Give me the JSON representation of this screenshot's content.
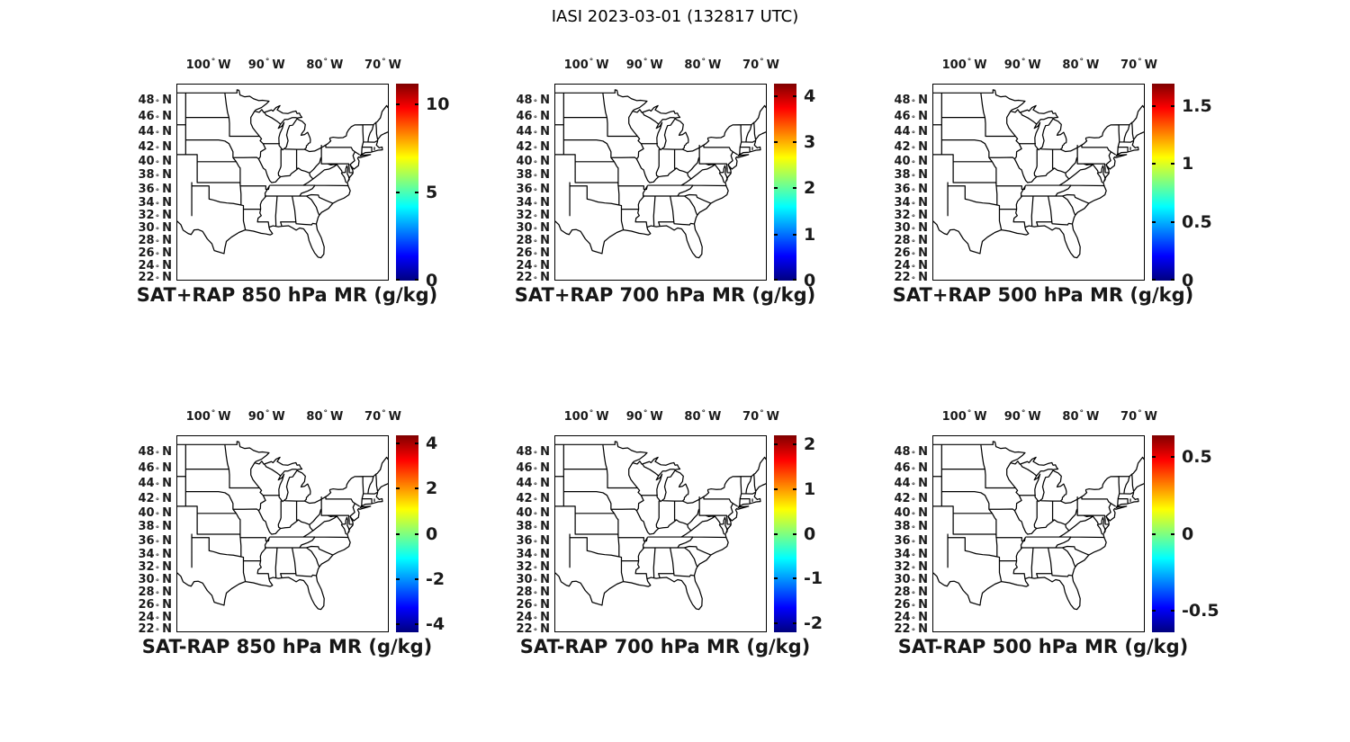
{
  "figure_title": "IASI 2023-03-01 (132817 UTC)",
  "axes": {
    "lon_ticks": [
      {
        "value": "100",
        "hemi": "W",
        "lon": -100
      },
      {
        "value": "90",
        "hemi": "W",
        "lon": -90
      },
      {
        "value": "80",
        "hemi": "W",
        "lon": -80
      },
      {
        "value": "70",
        "hemi": "W",
        "lon": -70
      }
    ],
    "lat_ticks": [
      {
        "value": "48",
        "hemi": "N",
        "lat": 48
      },
      {
        "value": "46",
        "hemi": "N",
        "lat": 46
      },
      {
        "value": "44",
        "hemi": "N",
        "lat": 44
      },
      {
        "value": "42",
        "hemi": "N",
        "lat": 42
      },
      {
        "value": "40",
        "hemi": "N",
        "lat": 40
      },
      {
        "value": "38",
        "hemi": "N",
        "lat": 38
      },
      {
        "value": "36",
        "hemi": "N",
        "lat": 36
      },
      {
        "value": "34",
        "hemi": "N",
        "lat": 34
      },
      {
        "value": "32",
        "hemi": "N",
        "lat": 32
      },
      {
        "value": "30",
        "hemi": "N",
        "lat": 30
      },
      {
        "value": "28",
        "hemi": "N",
        "lat": 28
      },
      {
        "value": "26",
        "hemi": "N",
        "lat": 26
      },
      {
        "value": "24",
        "hemi": "N",
        "lat": 24
      },
      {
        "value": "22",
        "hemi": "N",
        "lat": 22
      }
    ]
  },
  "colormap": {
    "name": "jet",
    "stops": [
      "#00007f",
      "#0000ff",
      "#00ffff",
      "#ffff00",
      "#ff0000",
      "#7f0000"
    ],
    "positions": [
      0,
      12.5,
      37.5,
      62.5,
      87.5,
      100
    ]
  },
  "panels": [
    {
      "title": "SAT+RAP 850 hPa MR (g/kg)",
      "colorbar": {
        "min": 0,
        "max": 11.15,
        "ticks": [
          {
            "label": "0",
            "value": 0
          },
          {
            "label": "5",
            "value": 5
          },
          {
            "label": "10",
            "value": 10
          }
        ]
      }
    },
    {
      "title": "SAT+RAP 700 hPa MR (g/kg)",
      "colorbar": {
        "min": 0,
        "max": 4.27,
        "ticks": [
          {
            "label": "0",
            "value": 0
          },
          {
            "label": "1",
            "value": 1
          },
          {
            "label": "2",
            "value": 2
          },
          {
            "label": "3",
            "value": 3
          },
          {
            "label": "4",
            "value": 4
          }
        ]
      }
    },
    {
      "title": "SAT+RAP 500 hPa MR (g/kg)",
      "colorbar": {
        "min": 0,
        "max": 1.69,
        "ticks": [
          {
            "label": "0",
            "value": 0
          },
          {
            "label": "0.5",
            "value": 0.5
          },
          {
            "label": "1",
            "value": 1
          },
          {
            "label": "1.5",
            "value": 1.5
          }
        ]
      }
    },
    {
      "title": "SAT-RAP 850 hPa MR (g/kg)",
      "colorbar": {
        "min": -4.35,
        "max": 4.35,
        "ticks": [
          {
            "label": "-4",
            "value": -4
          },
          {
            "label": "-2",
            "value": -2
          },
          {
            "label": "0",
            "value": 0
          },
          {
            "label": "2",
            "value": 2
          },
          {
            "label": "4",
            "value": 4
          }
        ]
      }
    },
    {
      "title": "SAT-RAP 700 hPa MR (g/kg)",
      "colorbar": {
        "min": -2.2,
        "max": 2.2,
        "ticks": [
          {
            "label": "-2",
            "value": -2
          },
          {
            "label": "-1",
            "value": -1
          },
          {
            "label": "0",
            "value": 0
          },
          {
            "label": "1",
            "value": 1
          },
          {
            "label": "2",
            "value": 2
          }
        ]
      }
    },
    {
      "title": "SAT-RAP 500 hPa MR (g/kg)",
      "colorbar": {
        "min": -0.64,
        "max": 0.64,
        "ticks": [
          {
            "label": "-0.5",
            "value": -0.5
          },
          {
            "label": "0",
            "value": 0
          },
          {
            "label": "0.5",
            "value": 0.5
          }
        ]
      }
    }
  ],
  "chart_data": [
    {
      "type": "map",
      "panel": "top-left",
      "title": "SAT+RAP 850 hPa MR (g/kg)",
      "projection": "mercator",
      "lon_range": [
        -105.5,
        -69
      ],
      "lat_range": [
        21.5,
        50
      ],
      "lon_tick_values": [
        -100,
        -90,
        -80,
        -70
      ],
      "lat_tick_values": [
        48,
        46,
        44,
        42,
        40,
        38,
        36,
        34,
        32,
        30,
        28,
        26,
        24,
        22
      ],
      "colorbar": {
        "colormap": "jet",
        "tick_values": [
          0,
          5,
          10
        ],
        "range_approx": [
          0,
          11
        ],
        "units": "g/kg"
      },
      "data_overlay": "none visible (empty US state basemap)"
    },
    {
      "type": "map",
      "panel": "top-center",
      "title": "SAT+RAP 700 hPa MR (g/kg)",
      "projection": "mercator",
      "lon_range": [
        -105.5,
        -69
      ],
      "lat_range": [
        21.5,
        50
      ],
      "lon_tick_values": [
        -100,
        -90,
        -80,
        -70
      ],
      "lat_tick_values": [
        48,
        46,
        44,
        42,
        40,
        38,
        36,
        34,
        32,
        30,
        28,
        26,
        24,
        22
      ],
      "colorbar": {
        "colormap": "jet",
        "tick_values": [
          0,
          1,
          2,
          3,
          4
        ],
        "range_approx": [
          0,
          4.3
        ],
        "units": "g/kg"
      },
      "data_overlay": "none visible (empty US state basemap)"
    },
    {
      "type": "map",
      "panel": "top-right",
      "title": "SAT+RAP 500 hPa MR (g/kg)",
      "projection": "mercator",
      "lon_range": [
        -105.5,
        -69
      ],
      "lat_range": [
        21.5,
        50
      ],
      "lon_tick_values": [
        -100,
        -90,
        -80,
        -70
      ],
      "lat_tick_values": [
        48,
        46,
        44,
        42,
        40,
        38,
        36,
        34,
        32,
        30,
        28,
        26,
        24,
        22
      ],
      "colorbar": {
        "colormap": "jet",
        "tick_values": [
          0,
          0.5,
          1,
          1.5
        ],
        "range_approx": [
          0,
          1.7
        ],
        "units": "g/kg"
      },
      "data_overlay": "none visible (empty US state basemap)"
    },
    {
      "type": "map",
      "panel": "bottom-left",
      "title": "SAT-RAP 850 hPa MR (g/kg)",
      "projection": "mercator",
      "lon_range": [
        -105.5,
        -69
      ],
      "lat_range": [
        21.5,
        50
      ],
      "lon_tick_values": [
        -100,
        -90,
        -80,
        -70
      ],
      "lat_tick_values": [
        48,
        46,
        44,
        42,
        40,
        38,
        36,
        34,
        32,
        30,
        28,
        26,
        24,
        22
      ],
      "colorbar": {
        "colormap": "jet",
        "tick_values": [
          -4,
          -2,
          0,
          2,
          4
        ],
        "range_approx": [
          -4.35,
          4.35
        ],
        "units": "g/kg"
      },
      "data_overlay": "none visible (empty US state basemap)"
    },
    {
      "type": "map",
      "panel": "bottom-center",
      "title": "SAT-RAP 700 hPa MR (g/kg)",
      "projection": "mercator",
      "lon_range": [
        -105.5,
        -69
      ],
      "lat_range": [
        21.5,
        50
      ],
      "lon_tick_values": [
        -100,
        -90,
        -80,
        -70
      ],
      "lat_tick_values": [
        48,
        46,
        44,
        42,
        40,
        38,
        36,
        34,
        32,
        30,
        28,
        26,
        24,
        22
      ],
      "colorbar": {
        "colormap": "jet",
        "tick_values": [
          -2,
          -1,
          0,
          1,
          2
        ],
        "range_approx": [
          -2.2,
          2.2
        ],
        "units": "g/kg"
      },
      "data_overlay": "none visible (empty US state basemap)"
    },
    {
      "type": "map",
      "panel": "bottom-right",
      "title": "SAT-RAP 500 hPa MR (g/kg)",
      "projection": "mercator",
      "lon_range": [
        -105.5,
        -69
      ],
      "lat_range": [
        21.5,
        50
      ],
      "lon_tick_values": [
        -100,
        -90,
        -80,
        -70
      ],
      "lat_tick_values": [
        48,
        46,
        44,
        42,
        40,
        38,
        36,
        34,
        32,
        30,
        28,
        26,
        24,
        22
      ],
      "colorbar": {
        "colormap": "jet",
        "tick_values": [
          -0.5,
          0,
          0.5
        ],
        "range_approx": [
          -0.64,
          0.64
        ],
        "units": "g/kg"
      },
      "data_overlay": "none visible (empty US state basemap)"
    }
  ]
}
